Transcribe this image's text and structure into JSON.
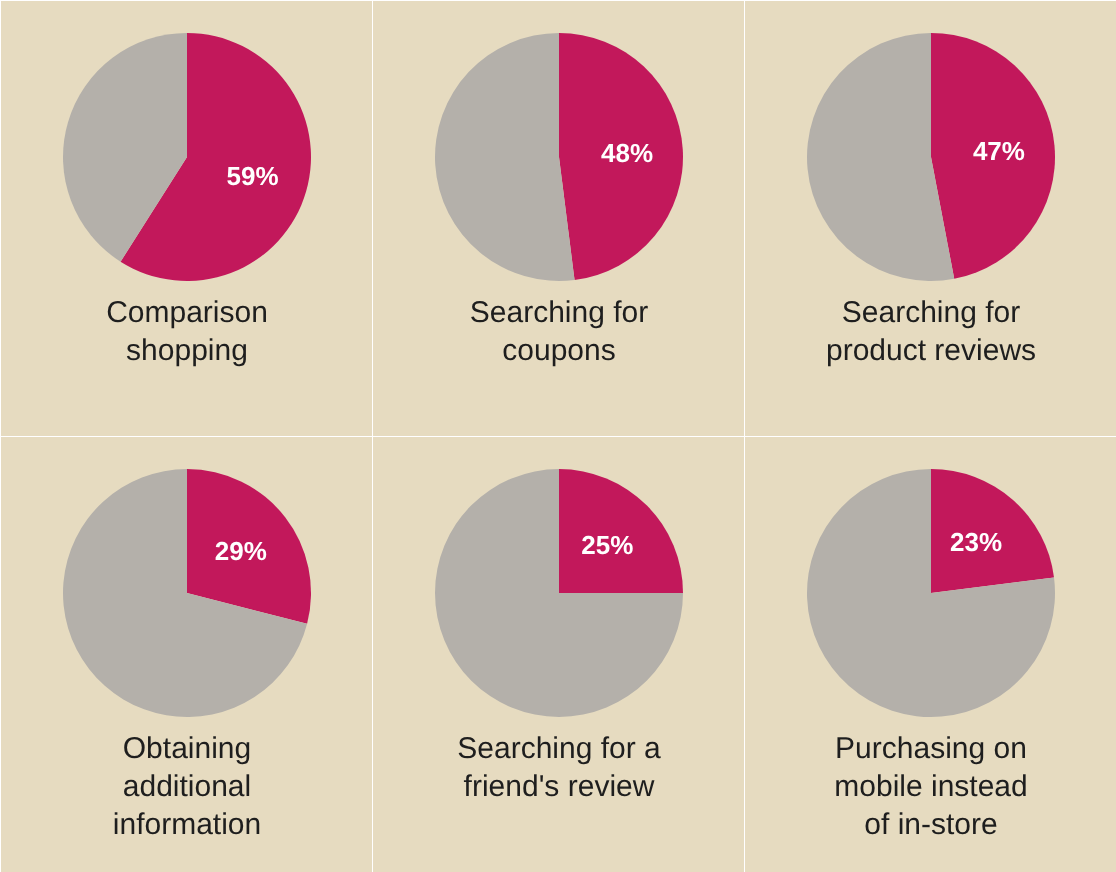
{
  "chart_data": [
    {
      "type": "pie",
      "title": "Comparison shopping",
      "categories": [
        null,
        null
      ],
      "values": [
        59,
        41
      ],
      "colors": [
        "#c2185b",
        "#b4b0aa"
      ],
      "value_labels": [
        "59%",
        null
      ]
    },
    {
      "type": "pie",
      "title": "Searching for coupons",
      "categories": [
        null,
        null
      ],
      "values": [
        48,
        52
      ],
      "colors": [
        "#c2185b",
        "#b4b0aa"
      ],
      "value_labels": [
        "48%",
        null
      ]
    },
    {
      "type": "pie",
      "title": "Searching for product reviews",
      "categories": [
        null,
        null
      ],
      "values": [
        47,
        53
      ],
      "colors": [
        "#c2185b",
        "#b4b0aa"
      ],
      "value_labels": [
        "47%",
        null
      ]
    },
    {
      "type": "pie",
      "title": "Obtaining additional information",
      "categories": [
        null,
        null
      ],
      "values": [
        29,
        71
      ],
      "colors": [
        "#c2185b",
        "#b4b0aa"
      ],
      "value_labels": [
        "29%",
        null
      ]
    },
    {
      "type": "pie",
      "title": "Searching for a friend's review",
      "categories": [
        null,
        null
      ],
      "values": [
        25,
        75
      ],
      "colors": [
        "#c2185b",
        "#b4b0aa"
      ],
      "value_labels": [
        "25%",
        null
      ]
    },
    {
      "type": "pie",
      "title": "Purchasing on mobile instead of in-store",
      "categories": [
        null,
        null
      ],
      "values": [
        23,
        77
      ],
      "colors": [
        "#c2185b",
        "#b4b0aa"
      ],
      "value_labels": [
        "23%",
        null
      ]
    }
  ]
}
